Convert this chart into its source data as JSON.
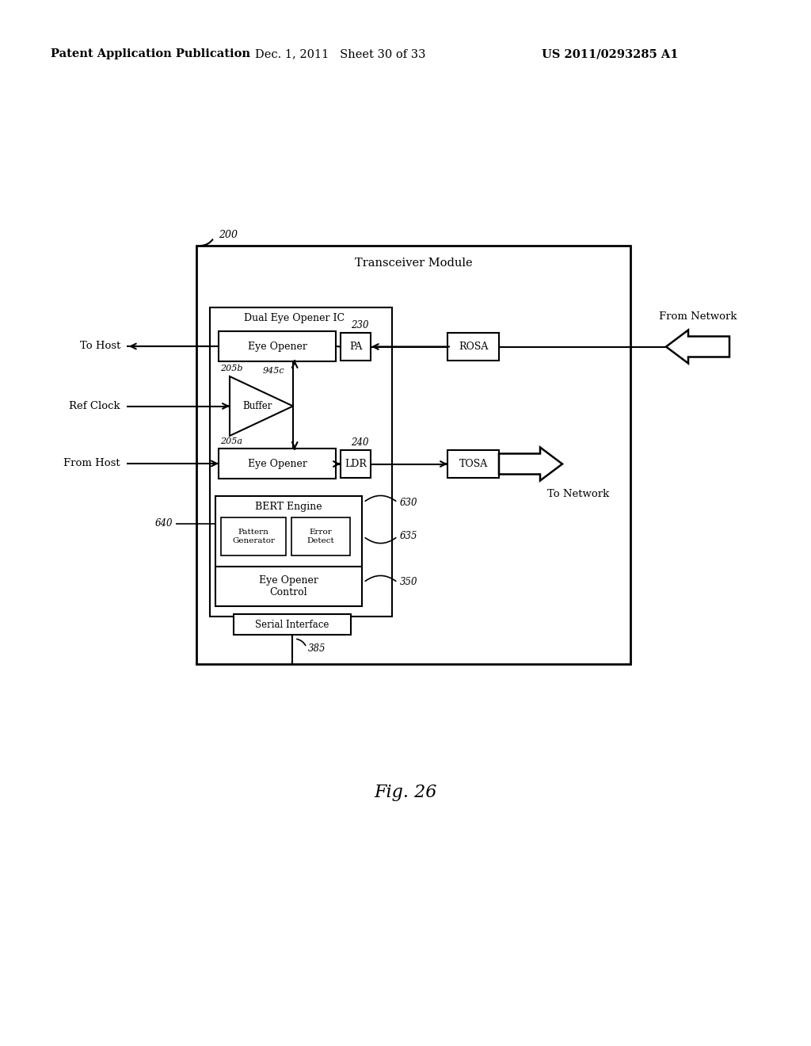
{
  "bg_color": "#ffffff",
  "header_left": "Patent Application Publication",
  "header_mid": "Dec. 1, 2011   Sheet 30 of 33",
  "header_right": "US 2011/0293285 A1",
  "fig_label": "Fig. 26",
  "title": "Transceiver Module",
  "label_200": "200",
  "label_230": "230",
  "label_240": "240",
  "label_205a": "205a",
  "label_205b": "205b",
  "label_945c": "945c",
  "label_630": "630",
  "label_635": "635",
  "label_350": "350",
  "label_640": "640",
  "label_385": "385",
  "text_to_host": "To Host",
  "text_ref_clock": "Ref Clock",
  "text_from_host": "From Host",
  "text_from_network": "From Network",
  "text_to_network": "To Network",
  "text_dual_ic": "Dual Eye Opener IC",
  "text_eye_opener_top": "Eye Opener",
  "text_eye_opener_bot": "Eye Opener",
  "text_buffer": "Buffer",
  "text_pa": "PA",
  "text_ldr": "LDR",
  "text_rosa": "ROSA",
  "text_tosa": "TOSA",
  "text_bert_engine": "BERT Engine",
  "text_pattern_gen": "Pattern\nGenerator",
  "text_error_detect": "Error\nDetect",
  "text_eye_opener_control": "Eye Opener\nControl",
  "text_serial_interface": "Serial Interface"
}
